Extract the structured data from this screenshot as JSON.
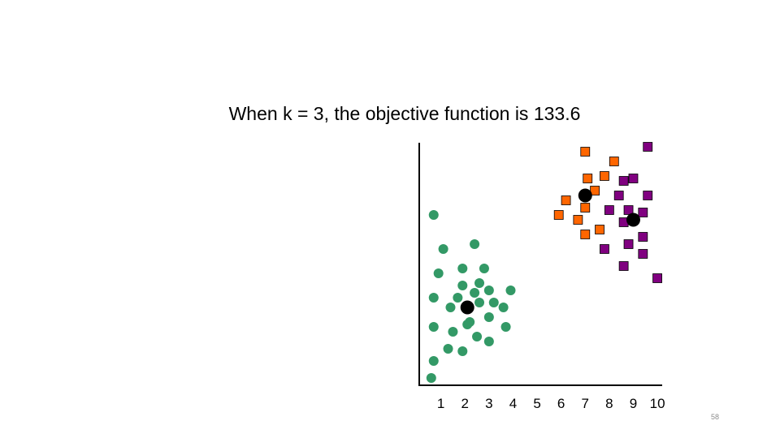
{
  "slide": {
    "title": "When k = 3, the objective function is 133.6",
    "page_number": "58"
  },
  "chart_data": {
    "type": "scatter",
    "title": "When k = 3, the objective function is 133.6",
    "xlabel": "",
    "ylabel": "",
    "xlim": [
      0.1,
      10.2
    ],
    "ylim": [
      0,
      10
    ],
    "x_ticks": [
      "1",
      "2",
      "3",
      "4",
      "5",
      "6",
      "7",
      "8",
      "9",
      "10"
    ],
    "grid": false,
    "legend": "none",
    "series": [
      {
        "marker": "circle",
        "color": "#339966",
        "points": [
          [
            0.7,
            7.0
          ],
          [
            1.1,
            5.6
          ],
          [
            2.4,
            5.8
          ],
          [
            0.9,
            4.6
          ],
          [
            1.9,
            4.8
          ],
          [
            2.8,
            4.8
          ],
          [
            1.9,
            4.1
          ],
          [
            2.6,
            4.2
          ],
          [
            0.7,
            3.6
          ],
          [
            1.7,
            3.6
          ],
          [
            2.4,
            3.8
          ],
          [
            3.0,
            3.9
          ],
          [
            3.9,
            3.9
          ],
          [
            1.4,
            3.2
          ],
          [
            2.6,
            3.4
          ],
          [
            3.2,
            3.4
          ],
          [
            3.6,
            3.2
          ],
          [
            2.2,
            2.6
          ],
          [
            2.1,
            2.5
          ],
          [
            3.0,
            2.8
          ],
          [
            0.7,
            2.4
          ],
          [
            1.5,
            2.2
          ],
          [
            2.5,
            2.0
          ],
          [
            3.7,
            2.4
          ],
          [
            3.0,
            1.8
          ],
          [
            1.3,
            1.5
          ],
          [
            1.9,
            1.4
          ],
          [
            0.7,
            1.0
          ],
          [
            0.6,
            0.3
          ]
        ]
      },
      {
        "marker": "square",
        "color": "#ff6600",
        "points": [
          [
            7.0,
            9.6
          ],
          [
            8.2,
            9.2
          ],
          [
            7.1,
            8.5
          ],
          [
            7.8,
            8.6
          ],
          [
            7.4,
            8.0
          ],
          [
            6.2,
            7.6
          ],
          [
            7.0,
            7.3
          ],
          [
            5.9,
            7.0
          ],
          [
            6.7,
            6.8
          ],
          [
            7.6,
            6.4
          ],
          [
            7.0,
            6.2
          ]
        ]
      },
      {
        "marker": "square",
        "color": "#800080",
        "points": [
          [
            9.6,
            9.8
          ],
          [
            8.6,
            8.4
          ],
          [
            9.0,
            8.5
          ],
          [
            8.4,
            7.8
          ],
          [
            9.6,
            7.8
          ],
          [
            8.0,
            7.2
          ],
          [
            8.8,
            7.2
          ],
          [
            9.4,
            7.1
          ],
          [
            8.6,
            6.7
          ],
          [
            9.4,
            6.1
          ],
          [
            8.8,
            5.8
          ],
          [
            7.8,
            5.6
          ],
          [
            9.4,
            5.4
          ],
          [
            8.6,
            4.9
          ],
          [
            10.0,
            4.4
          ]
        ]
      }
    ],
    "centroids": [
      [
        2.1,
        3.2
      ],
      [
        7.0,
        7.8
      ],
      [
        9.0,
        6.8
      ]
    ],
    "centroid_color": "#000000"
  }
}
